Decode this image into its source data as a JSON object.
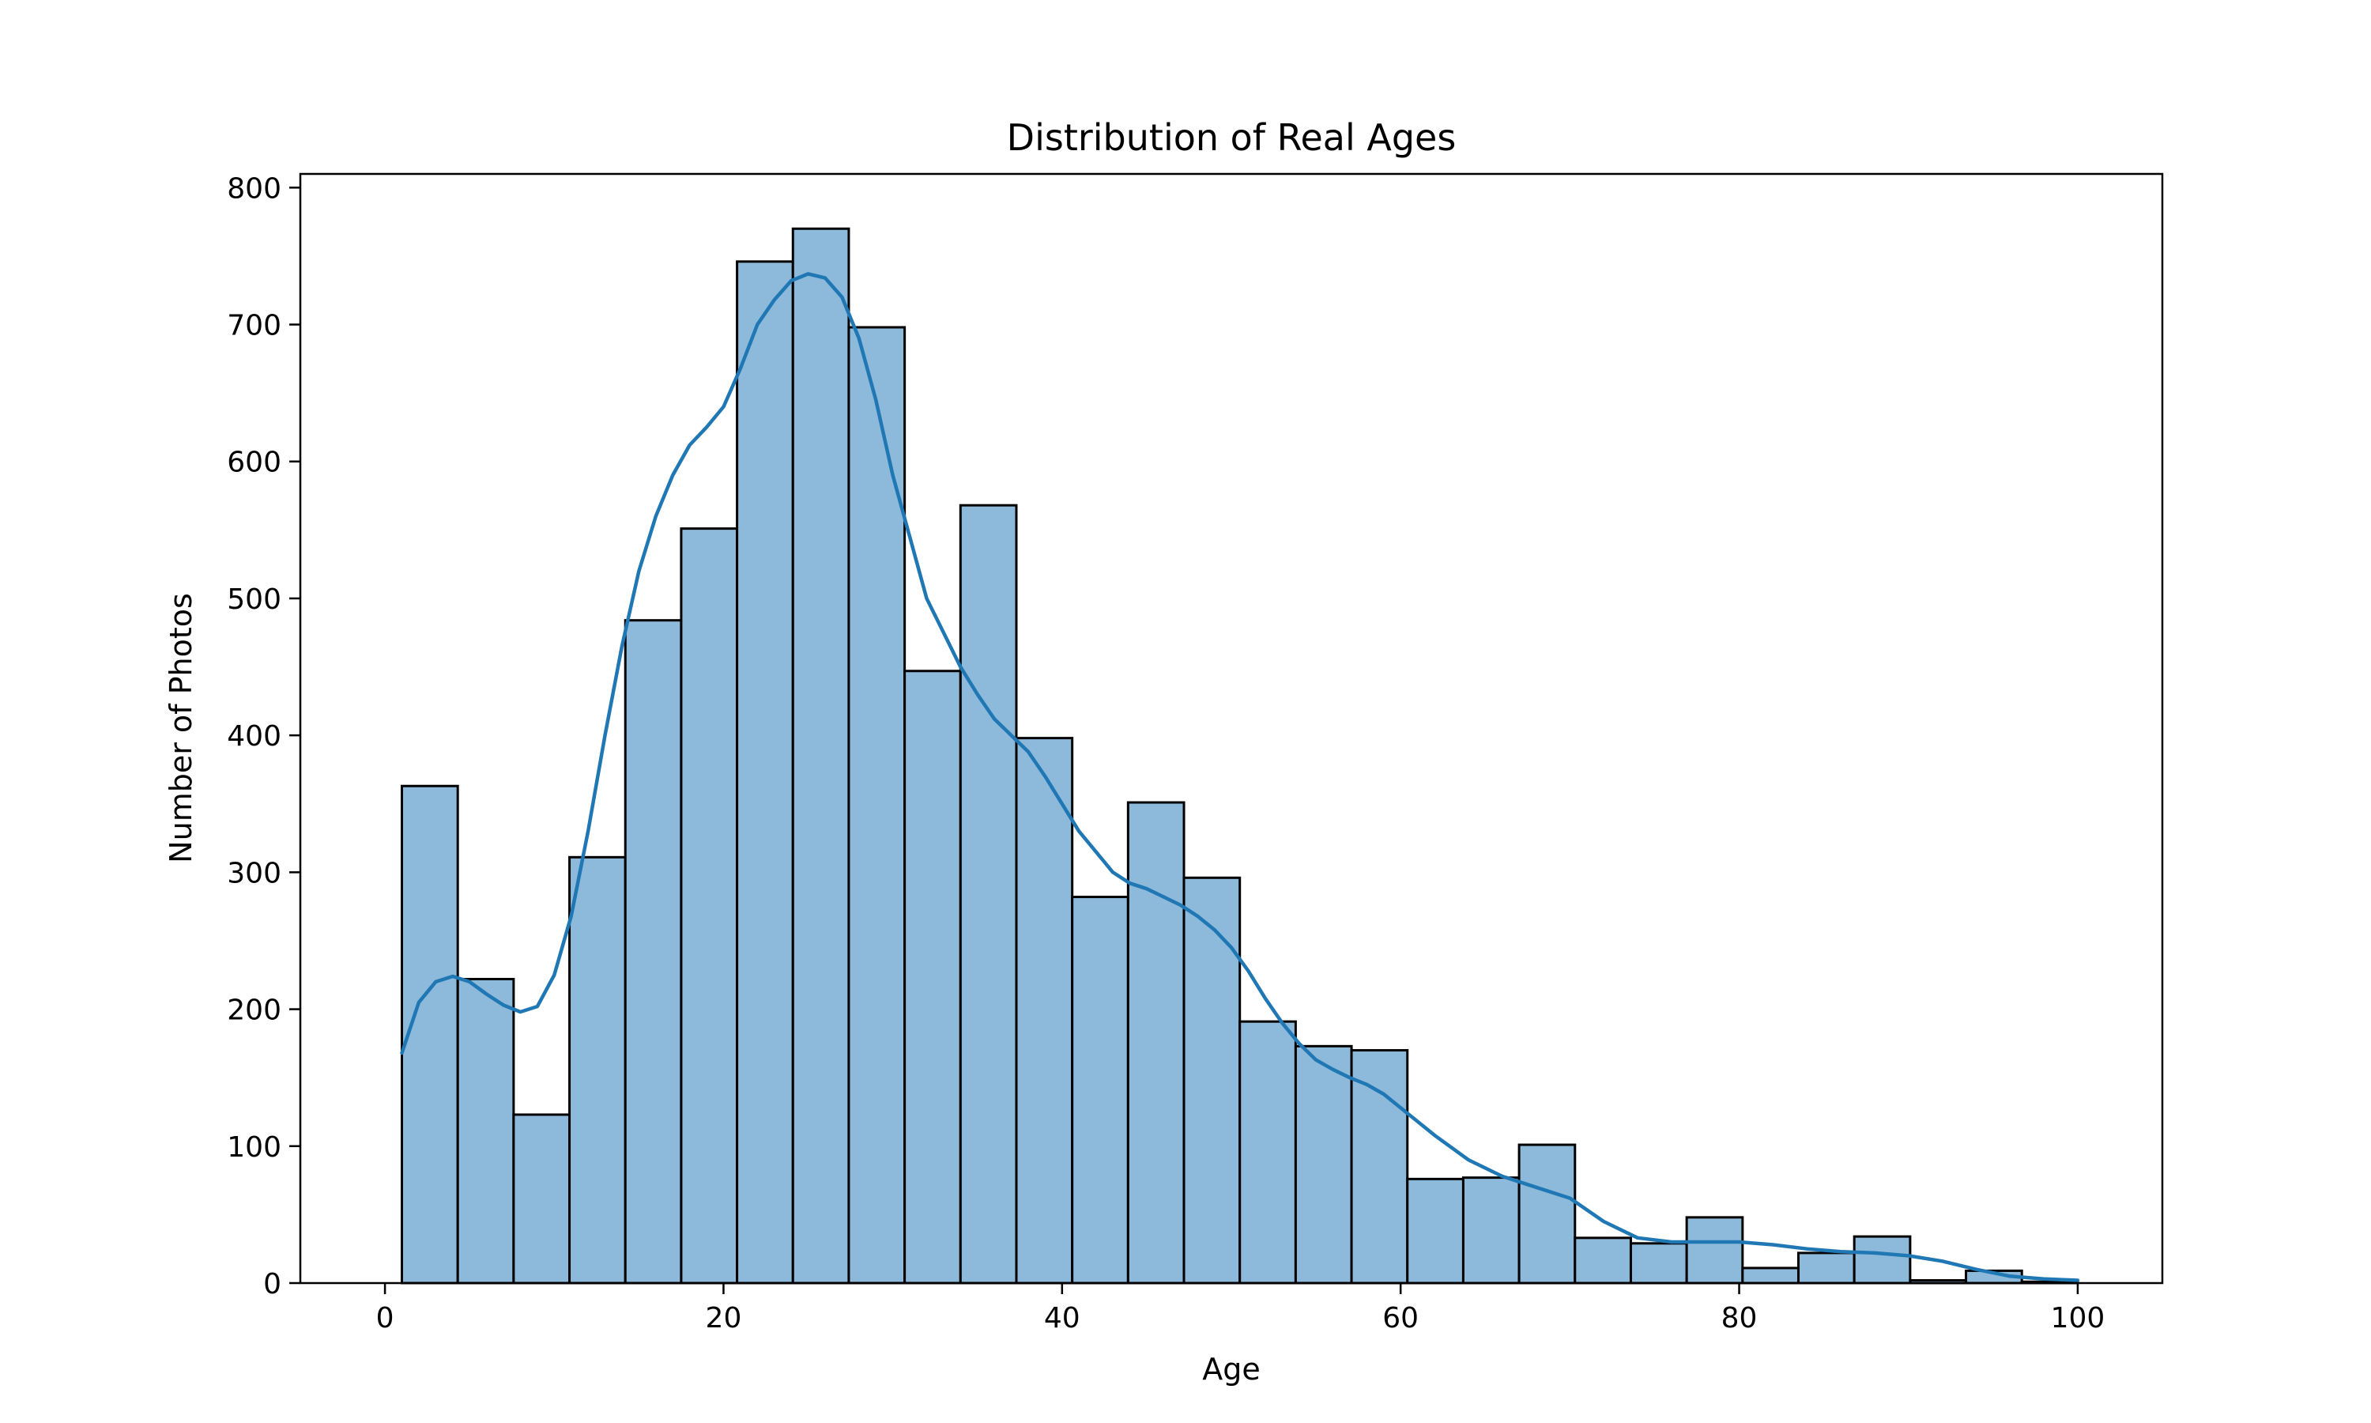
{
  "chart_data": {
    "type": "bar",
    "subtype": "histogram-with-kde",
    "title": "Distribution of Real Ages",
    "xlabel": "Age",
    "ylabel": "Number of Photos",
    "xlim": [
      -5,
      105
    ],
    "ylim": [
      0,
      810
    ],
    "xticks": [
      0,
      20,
      40,
      60,
      80,
      100
    ],
    "yticks": [
      0,
      100,
      200,
      300,
      400,
      500,
      600,
      700,
      800
    ],
    "grid": false,
    "legend": "none",
    "bar_color": "#8db9da",
    "bar_edge_color": "#000000",
    "line_color": "#1f77b4",
    "bins": {
      "start": 1,
      "width": 3.3,
      "counts": [
        363,
        222,
        123,
        311,
        484,
        551,
        746,
        770,
        698,
        447,
        568,
        398,
        282,
        351,
        296,
        191,
        173,
        170,
        76,
        77,
        101,
        33,
        29,
        48,
        11,
        22,
        34,
        2,
        9,
        1
      ]
    },
    "kde": {
      "x": [
        1,
        2,
        3,
        4,
        5,
        6,
        7,
        8,
        9,
        10,
        11,
        12,
        13,
        14,
        15,
        16,
        17,
        18,
        19,
        20,
        21,
        22,
        23,
        24,
        25,
        26,
        27,
        28,
        29,
        30,
        31,
        32,
        33,
        34,
        35,
        36,
        37,
        38,
        39,
        40,
        41,
        42,
        43,
        44,
        45,
        46,
        47,
        48,
        49,
        50,
        51,
        52,
        53,
        54,
        55,
        56,
        57,
        58,
        59,
        60,
        62,
        64,
        66,
        68,
        70,
        72,
        74,
        76,
        78,
        80,
        82,
        84,
        86,
        88,
        90,
        92,
        94,
        96,
        98,
        100
      ],
      "y": [
        168,
        205,
        220,
        224,
        220,
        211,
        203,
        198,
        202,
        225,
        268,
        330,
        400,
        465,
        520,
        560,
        590,
        612,
        625,
        640,
        668,
        700,
        718,
        732,
        737,
        734,
        720,
        690,
        645,
        590,
        545,
        500,
        475,
        450,
        430,
        412,
        400,
        388,
        370,
        350,
        330,
        315,
        300,
        292,
        288,
        282,
        276,
        268,
        258,
        245,
        228,
        208,
        190,
        175,
        163,
        156,
        150,
        145,
        138,
        128,
        108,
        90,
        78,
        70,
        62,
        45,
        33,
        30,
        30,
        30,
        28,
        25,
        23,
        22,
        20,
        16,
        10,
        5,
        3,
        2
      ]
    }
  }
}
